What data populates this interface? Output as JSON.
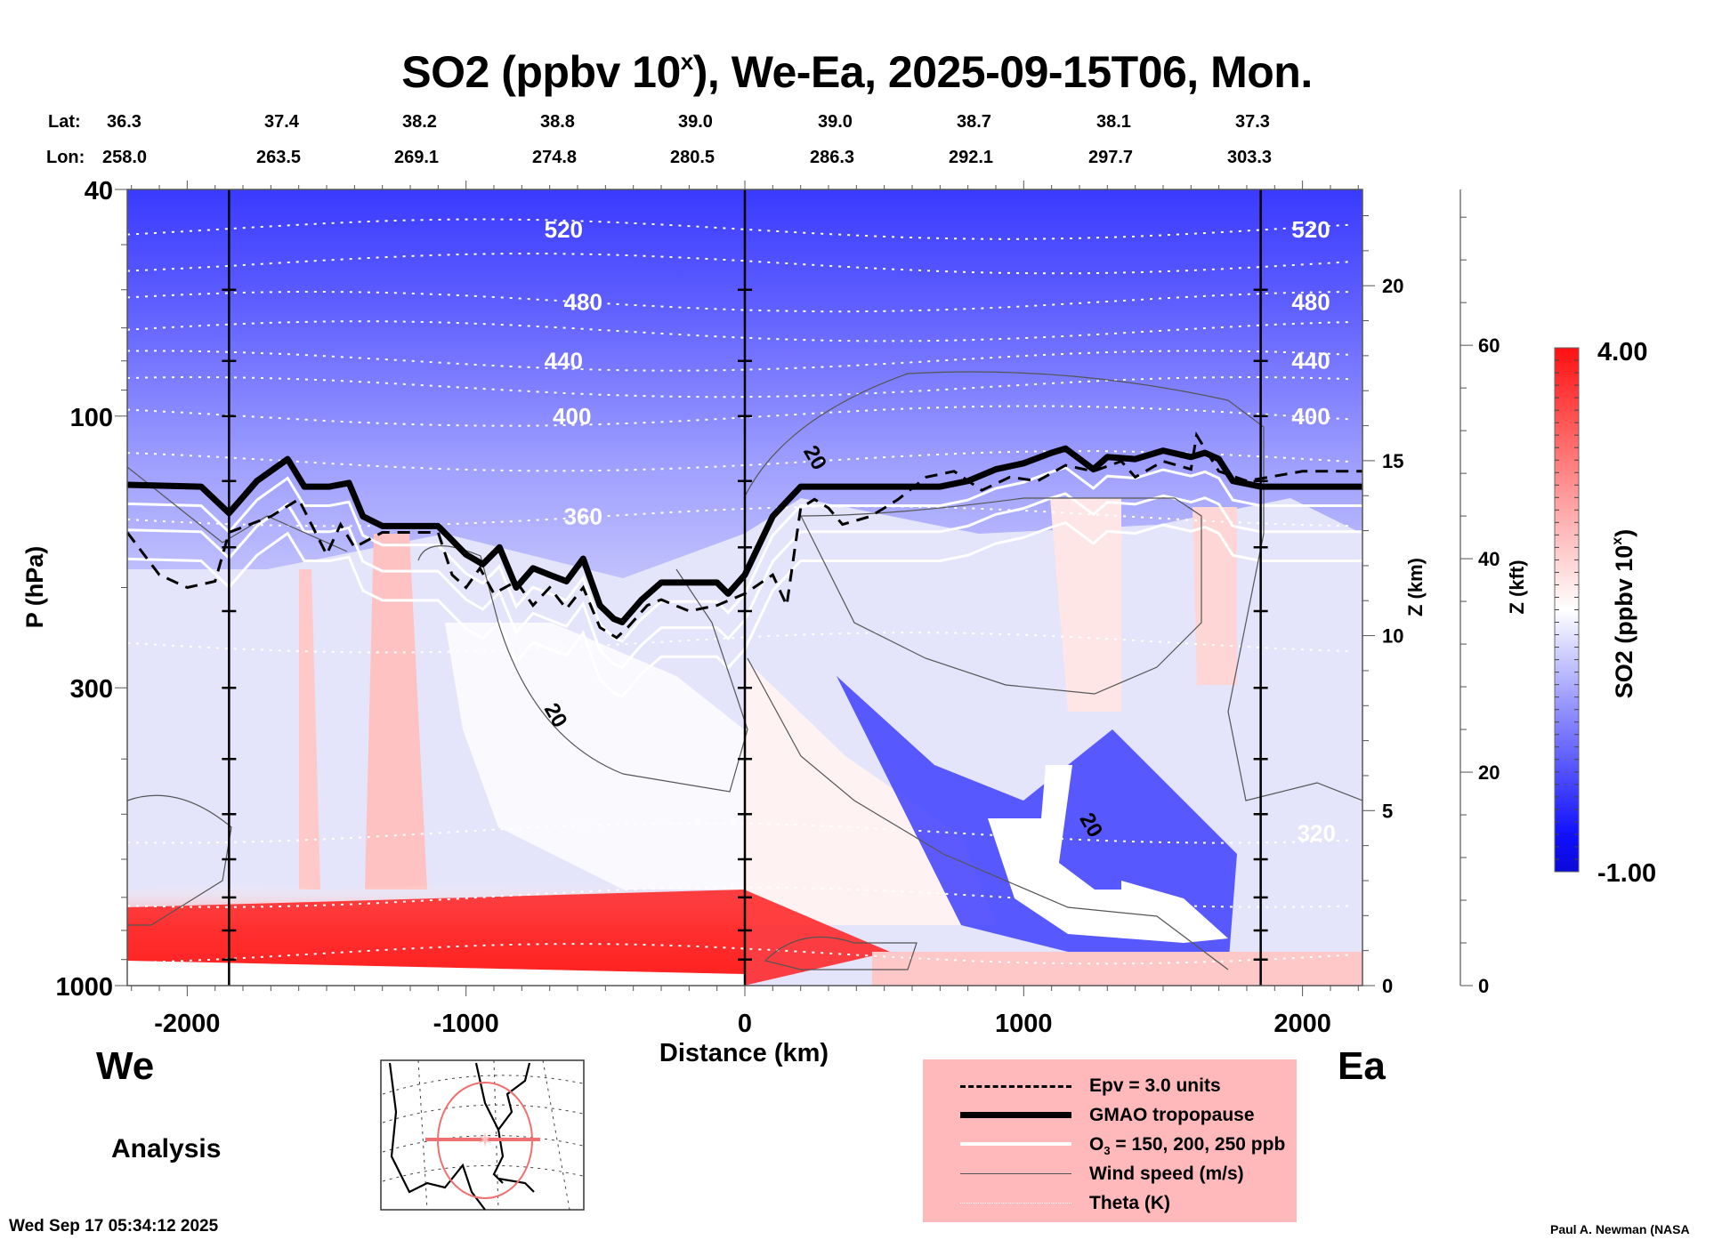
{
  "title": {
    "prefix": "SO2 (ppbv 10",
    "superscript": "x",
    "suffix": "), We-Ea, 2025-09-15T06, Mon."
  },
  "track": {
    "lat_label": "Lat:",
    "lon_label": "Lon:",
    "lat": [
      "36.3",
      "37.4",
      "38.2",
      "38.8",
      "39.0",
      "39.0",
      "38.7",
      "38.1",
      "37.3"
    ],
    "lon": [
      "258.0",
      "263.5",
      "269.1",
      "274.8",
      "280.5",
      "286.3",
      "292.1",
      "297.7",
      "303.3"
    ]
  },
  "labels": {
    "west": "We",
    "east": "Ea",
    "analysis": "Analysis",
    "timestamp": "Wed Sep 17 05:34:12 2025",
    "credit": "Paul A. Newman (NASA"
  },
  "legend": {
    "items": [
      {
        "style": "dashed",
        "label": "Epv = 3.0 units"
      },
      {
        "style": "thick",
        "label": "GMAO tropopause"
      },
      {
        "style": "white",
        "label_pre": "O",
        "label_sub": "3",
        "label_post": " = 150, 200, 250 ppb"
      },
      {
        "style": "thin",
        "label": "Wind speed (m/s)"
      },
      {
        "style": "dotted",
        "label": "Theta (K)"
      }
    ]
  },
  "colors": {
    "high": "#ff0000",
    "mid": "#ffffff",
    "low": "#0000ff",
    "legend_bg": "#ffb9bb",
    "map_track": "#f07070"
  },
  "chart_data": {
    "type": "heatmap",
    "title": "SO2 (ppbv 10^x), We-Ea, 2025-09-15T06, Mon.",
    "xlabel": "Distance (km)",
    "ylabel": "P (hPa)",
    "xlim": [
      -2215,
      2215
    ],
    "ylim": [
      1000,
      40
    ],
    "yscale": "log",
    "xticks": [
      -2000,
      -1000,
      0,
      1000,
      2000
    ],
    "xtick_labels": [
      "-2000",
      "-1000",
      "0",
      "1000",
      "2000"
    ],
    "yticks": [
      40,
      100,
      300,
      1000
    ],
    "ytick_labels": [
      "40",
      "100",
      "300",
      "1000"
    ],
    "right_axis_km": {
      "label": "Z (km)",
      "ticks": [
        0,
        5,
        10,
        15,
        20
      ],
      "tick_labels": [
        "0",
        "5",
        "10",
        "15",
        "20"
      ]
    },
    "right_axis_kft": {
      "label": "Z (kft)",
      "ticks": [
        0,
        20,
        40,
        60
      ],
      "tick_labels": [
        "0",
        "20",
        "40",
        "60"
      ]
    },
    "colorbar": {
      "label_pre": "SO2 (ppbv 10",
      "label_sup": "x",
      "label_post": ")",
      "min": -1.0,
      "max": 4.0,
      "min_label": "-1.00",
      "max_label": "4.00"
    },
    "vertical_markers_km": [
      -1850,
      0,
      1850
    ],
    "theta_contours": [
      {
        "value": 520,
        "label": "520",
        "p": 47
      },
      {
        "value": 480,
        "label": "480",
        "p": 63
      },
      {
        "value": 440,
        "label": "440",
        "p": 80
      },
      {
        "value": 400,
        "label": "400",
        "p": 100
      },
      {
        "value": 360,
        "label": "360",
        "p": 150
      },
      {
        "value": 320,
        "label": "320",
        "p": 540
      }
    ],
    "theta_unlabeled_p": [
      54,
      71,
      89,
      120,
      250,
      700,
      880
    ],
    "wind_labels": [
      {
        "label": "20",
        "x": -700,
        "p": 340
      },
      {
        "label": "20",
        "x": 230,
        "p": 120
      },
      {
        "label": "20",
        "x": 1220,
        "p": 530
      }
    ],
    "tropopause": {
      "x": [
        -2215,
        -1950,
        -1850,
        -1750,
        -1640,
        -1580,
        -1490,
        -1420,
        -1370,
        -1300,
        -1100,
        -1000,
        -940,
        -880,
        -820,
        -760,
        -700,
        -640,
        -580,
        -520,
        -470,
        -440,
        -370,
        -300,
        -200,
        -100,
        -60,
        0,
        100,
        200,
        300,
        500,
        700,
        800,
        900,
        1000,
        1100,
        1150,
        1250,
        1300,
        1400,
        1500,
        1600,
        1650,
        1700,
        1750,
        1850,
        2215
      ],
      "p": [
        132,
        133,
        148,
        130,
        119,
        133,
        133,
        131,
        150,
        156,
        156,
        175,
        182,
        170,
        200,
        185,
        190,
        195,
        178,
        215,
        227,
        230,
        210,
        196,
        196,
        196,
        205,
        190,
        150,
        133,
        133,
        133,
        133,
        130,
        124,
        121,
        116,
        114,
        124,
        118,
        119,
        115,
        118,
        116,
        119,
        130,
        133,
        133
      ]
    },
    "epv_3pvu": {
      "x": [
        -2215,
        -2100,
        -2000,
        -1900,
        -1850,
        -1700,
        -1600,
        -1500,
        -1450,
        -1400,
        -1300,
        -1100,
        -1050,
        -1000,
        -950,
        -900,
        -820,
        -760,
        -700,
        -640,
        -580,
        -520,
        -460,
        -420,
        -350,
        -300,
        -200,
        -100,
        0,
        100,
        150,
        200,
        250,
        300,
        350,
        450,
        500,
        550,
        650,
        750,
        850,
        950,
        1050,
        1150,
        1250,
        1350,
        1400,
        1500,
        1600,
        1620,
        1700,
        1800,
        2000,
        2215
      ],
      "p": [
        160,
        190,
        200,
        195,
        160,
        150,
        140,
        175,
        155,
        170,
        160,
        160,
        190,
        200,
        185,
        205,
        195,
        215,
        200,
        218,
        200,
        235,
        245,
        235,
        215,
        210,
        220,
        215,
        205,
        190,
        215,
        145,
        140,
        145,
        155,
        150,
        145,
        140,
        128,
        125,
        135,
        128,
        130,
        122,
        125,
        120,
        128,
        120,
        124,
        108,
        125,
        130,
        125,
        125
      ]
    },
    "ozone_contours_ppb": [
      150,
      200,
      250
    ]
  }
}
